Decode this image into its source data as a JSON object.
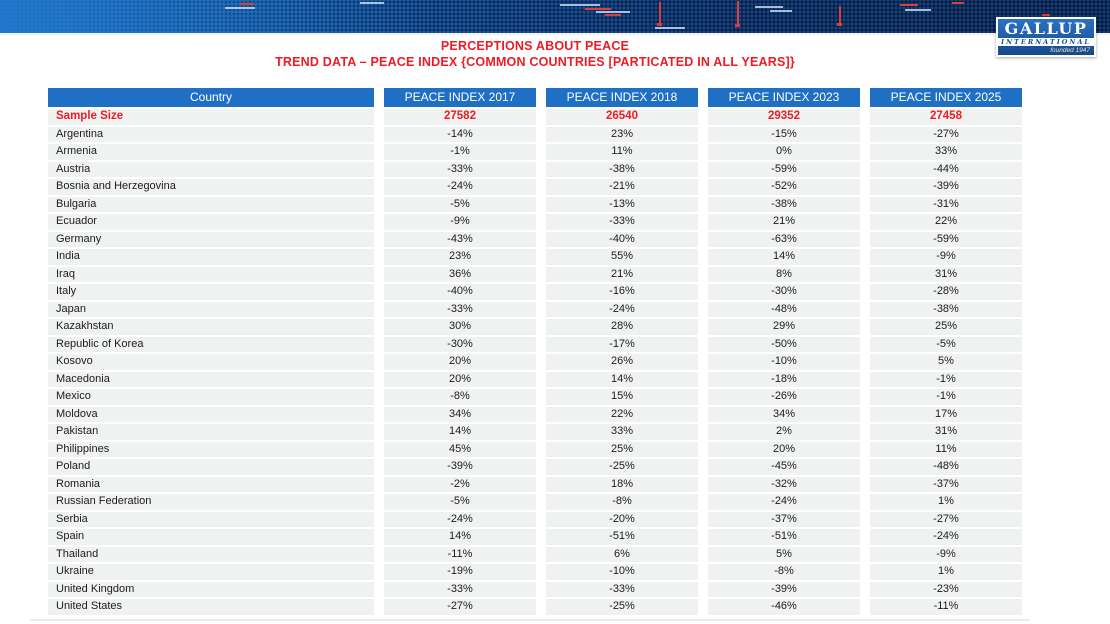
{
  "logo": {
    "name": "GALLUP",
    "subtitle": "INTERNATIONAL",
    "founded": "founded 1947"
  },
  "header": {
    "title_line1": "PERCEPTIONS ABOUT PEACE",
    "title_line2": "TREND DATA – PEACE INDEX {COMMON COUNTRIES [PARTICATED IN ALL YEARS]}"
  },
  "table": {
    "columns": [
      "Country",
      "PEACE INDEX 2017",
      "PEACE INDEX 2018",
      "PEACE INDEX 2023",
      "PEACE INDEX 2025"
    ],
    "sample_size": {
      "label": "Sample Size",
      "values": [
        "27582",
        "26540",
        "29352",
        "27458"
      ]
    },
    "rows": [
      {
        "country": "Argentina",
        "values": [
          "-14%",
          "23%",
          "-15%",
          "-27%"
        ]
      },
      {
        "country": "Armenia",
        "values": [
          "-1%",
          "11%",
          "0%",
          "33%"
        ]
      },
      {
        "country": "Austria",
        "values": [
          "-33%",
          "-38%",
          "-59%",
          "-44%"
        ]
      },
      {
        "country": "Bosnia and Herzegovina",
        "values": [
          "-24%",
          "-21%",
          "-52%",
          "-39%"
        ]
      },
      {
        "country": "Bulgaria",
        "values": [
          "-5%",
          "-13%",
          "-38%",
          "-31%"
        ]
      },
      {
        "country": "Ecuador",
        "values": [
          "-9%",
          "-33%",
          "21%",
          "22%"
        ]
      },
      {
        "country": "Germany",
        "values": [
          "-43%",
          "-40%",
          "-63%",
          "-59%"
        ]
      },
      {
        "country": "India",
        "values": [
          "23%",
          "55%",
          "14%",
          "-9%"
        ]
      },
      {
        "country": "Iraq",
        "values": [
          "36%",
          "21%",
          "8%",
          "31%"
        ]
      },
      {
        "country": "Italy",
        "values": [
          "-40%",
          "-16%",
          "-30%",
          "-28%"
        ]
      },
      {
        "country": "Japan",
        "values": [
          "-33%",
          "-24%",
          "-48%",
          "-38%"
        ]
      },
      {
        "country": "Kazakhstan",
        "values": [
          "30%",
          "28%",
          "29%",
          "25%"
        ]
      },
      {
        "country": "Republic of Korea",
        "values": [
          "-30%",
          "-17%",
          "-50%",
          "-5%"
        ]
      },
      {
        "country": "Kosovo",
        "values": [
          "20%",
          "26%",
          "-10%",
          "5%"
        ]
      },
      {
        "country": "Macedonia",
        "values": [
          "20%",
          "14%",
          "-18%",
          "-1%"
        ]
      },
      {
        "country": "Mexico",
        "values": [
          "-8%",
          "15%",
          "-26%",
          "-1%"
        ]
      },
      {
        "country": "Moldova",
        "values": [
          "34%",
          "22%",
          "34%",
          "17%"
        ]
      },
      {
        "country": "Pakistan",
        "values": [
          "14%",
          "33%",
          "2%",
          "31%"
        ]
      },
      {
        "country": "Philippines",
        "values": [
          "45%",
          "25%",
          "20%",
          "11%"
        ]
      },
      {
        "country": "Poland",
        "values": [
          "-39%",
          "-25%",
          "-45%",
          "-48%"
        ]
      },
      {
        "country": "Romania",
        "values": [
          "-2%",
          "18%",
          "-32%",
          "-37%"
        ]
      },
      {
        "country": "Russian Federation",
        "values": [
          "-5%",
          "-8%",
          "-24%",
          "1%"
        ]
      },
      {
        "country": "Serbia",
        "values": [
          "-24%",
          "-20%",
          "-37%",
          "-27%"
        ]
      },
      {
        "country": "Spain",
        "values": [
          "14%",
          "-51%",
          "-51%",
          "-24%"
        ]
      },
      {
        "country": "Thailand",
        "values": [
          "-11%",
          "6%",
          "5%",
          "-9%"
        ]
      },
      {
        "country": "Ukraine",
        "values": [
          "-19%",
          "-10%",
          "-8%",
          "1%"
        ]
      },
      {
        "country": "United Kingdom",
        "values": [
          "-33%",
          "-33%",
          "-39%",
          "-23%"
        ]
      },
      {
        "country": "United States",
        "values": [
          "-27%",
          "-25%",
          "-46%",
          "-11%"
        ]
      }
    ]
  },
  "colors": {
    "header_blue": "#1F6FC4",
    "title_red": "#ED1C24",
    "banner_navy": "#092a58",
    "banner_blue": "#1a6ec4",
    "row_gray": "#f0f1f1"
  }
}
